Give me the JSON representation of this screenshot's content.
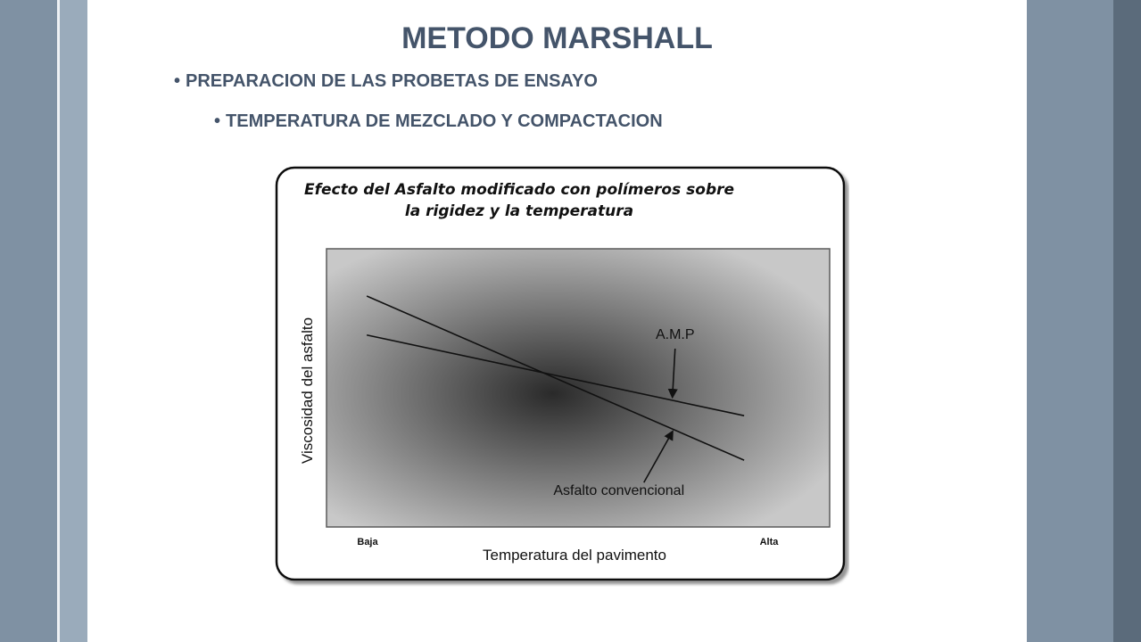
{
  "slide": {
    "title": "METODO MARSHALL",
    "bullets": [
      "PREPARACION DE LAS PROBETAS DE ENSAYO",
      "TEMPERATURA DE MEZCLADO Y COMPACTACION"
    ],
    "bullet_symbol": "•"
  },
  "chart_data": {
    "type": "line",
    "title_lines": [
      "Efecto del Asfalto modificado con polímeros sobre",
      "la rigidez y la temperatura"
    ],
    "xlabel": "Temperatura del pavimento",
    "ylabel": "Viscosidad del asfalto",
    "x_ticks": [
      "Baja",
      "Alta"
    ],
    "xlim": [
      0,
      1
    ],
    "ylim": [
      0,
      1
    ],
    "grid": false,
    "series": [
      {
        "name": "A.M.P",
        "color": "#111111",
        "x": [
          0.08,
          0.83
        ],
        "y": [
          0.69,
          0.4
        ]
      },
      {
        "name": "Asfalto convencional",
        "color": "#111111",
        "x": [
          0.08,
          0.83
        ],
        "y": [
          0.83,
          0.24
        ]
      }
    ],
    "annotations": [
      {
        "label": "A.M.P",
        "target_series": "A.M.P"
      },
      {
        "label": "Asfalto convencional",
        "target_series": "Asfalto convencional"
      }
    ],
    "colors": {
      "plot_center": "#2a2a2a",
      "plot_edge": "#c8c8c8",
      "frame": "#111111"
    }
  }
}
